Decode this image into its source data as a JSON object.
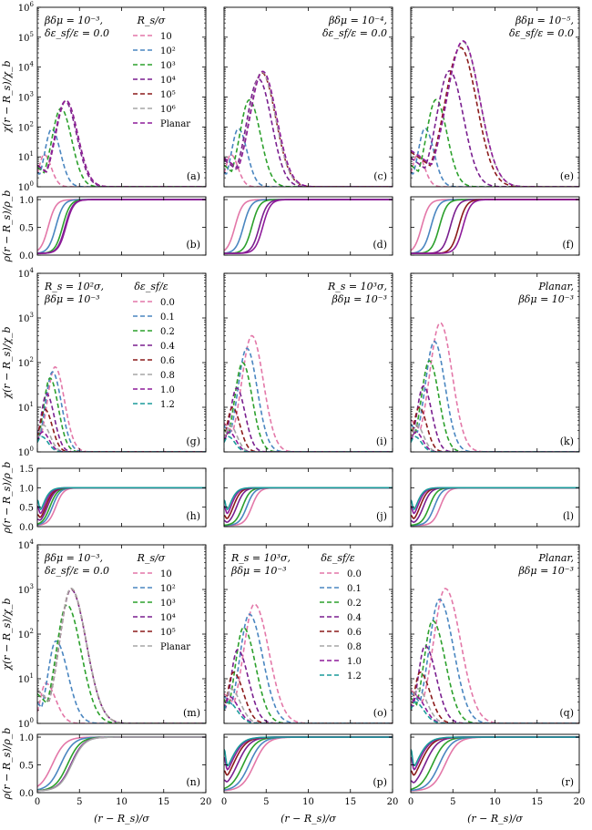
{
  "figure": {
    "x_label": "(r − R_s)/σ",
    "chi_label": "χ(r − R_s)/χ_b",
    "rho_label": "ρ(r − R_s)/ρ_b",
    "x_ticks": [
      "0",
      "5",
      "10",
      "15",
      "20"
    ]
  },
  "colors": {
    "pink": "#e377a8",
    "blue": "#4a86c0",
    "green": "#2ca02c",
    "purple": "#7a1f8f",
    "darkred": "#8b1a1a",
    "grey": "#a6a6a6",
    "magenta": "#8e1b9a",
    "teal": "#1a9a9a"
  },
  "chart_data": [
    {
      "id": "a",
      "type": "line",
      "scale": "log",
      "row": "chi",
      "ylim": [
        1,
        1000000
      ],
      "ylabels": [
        "10^0",
        "10^1",
        "10^2",
        "10^3",
        "10^4",
        "10^5",
        "10^6"
      ],
      "annotation": [
        "βδμ = 10⁻³,",
        "δε_sf/ε = 0.0"
      ],
      "legend_title": "R_s/σ",
      "series": [
        {
          "name": "10",
          "color": "pink",
          "peak": 12,
          "xp": 0.8
        },
        {
          "name": "10²",
          "color": "blue",
          "peak": 85,
          "xp": 1.7
        },
        {
          "name": "10³",
          "color": "green",
          "peak": 420,
          "xp": 2.8
        },
        {
          "name": "10⁴",
          "color": "purple",
          "peak": 720,
          "xp": 3.3
        },
        {
          "name": "10⁵",
          "color": "darkred",
          "peak": 760,
          "xp": 3.4
        },
        {
          "name": "10⁶",
          "color": "grey",
          "peak": 760,
          "xp": 3.4
        },
        {
          "name": "Planar",
          "color": "magenta",
          "peak": 770,
          "xp": 3.4
        }
      ]
    },
    {
      "id": "b",
      "type": "line",
      "scale": "linear",
      "row": "rho",
      "ylim": [
        0,
        1.05
      ],
      "ylabels": [
        "0.0",
        "0.5",
        "1.0"
      ],
      "series": [
        {
          "color": "pink",
          "mid": 1.3
        },
        {
          "color": "blue",
          "mid": 2.2
        },
        {
          "color": "green",
          "mid": 3.0
        },
        {
          "color": "purple",
          "mid": 3.3
        },
        {
          "color": "magenta",
          "mid": 3.4
        }
      ]
    },
    {
      "id": "c",
      "type": "line",
      "scale": "log",
      "row": "chi",
      "ylim": [
        1,
        1000000
      ],
      "annotation": [
        "βδμ = 10⁻⁴,",
        "δε_sf/ε = 0.0"
      ],
      "series": [
        {
          "name": "10",
          "color": "pink",
          "peak": 12,
          "xp": 0.8
        },
        {
          "name": "10²",
          "color": "blue",
          "peak": 88,
          "xp": 1.7
        },
        {
          "name": "10³",
          "color": "green",
          "peak": 800,
          "xp": 3.0
        },
        {
          "name": "10⁴",
          "color": "purple",
          "peak": 4000,
          "xp": 4.1
        },
        {
          "name": "10⁵",
          "color": "darkred",
          "peak": 6500,
          "xp": 4.5
        },
        {
          "name": "10⁶",
          "color": "grey",
          "peak": 7000,
          "xp": 4.5
        },
        {
          "name": "Planar",
          "color": "magenta",
          "peak": 7200,
          "xp": 4.6
        }
      ]
    },
    {
      "id": "d",
      "type": "line",
      "scale": "linear",
      "row": "rho",
      "ylim": [
        0,
        1.05
      ],
      "series": [
        {
          "color": "pink",
          "mid": 1.3
        },
        {
          "color": "blue",
          "mid": 2.3
        },
        {
          "color": "green",
          "mid": 3.3
        },
        {
          "color": "purple",
          "mid": 4.2
        },
        {
          "color": "magenta",
          "mid": 4.6
        }
      ]
    },
    {
      "id": "e",
      "type": "line",
      "scale": "log",
      "row": "chi",
      "ylim": [
        1,
        1000000
      ],
      "annotation": [
        "βδμ = 10⁻⁵,",
        "δε_sf/ε = 0.0"
      ],
      "series": [
        {
          "name": "10",
          "color": "pink",
          "peak": 12,
          "xp": 0.8
        },
        {
          "name": "10²",
          "color": "blue",
          "peak": 90,
          "xp": 1.7
        },
        {
          "name": "10³",
          "color": "green",
          "peak": 820,
          "xp": 3.0
        },
        {
          "name": "10⁴",
          "color": "purple",
          "peak": 7500,
          "xp": 4.6
        },
        {
          "name": "10⁵",
          "color": "darkred",
          "peak": 45000,
          "xp": 5.9
        },
        {
          "name": "10⁶",
          "color": "grey",
          "peak": 70000,
          "xp": 6.2
        },
        {
          "name": "Planar",
          "color": "magenta",
          "peak": 75000,
          "xp": 6.2
        }
      ]
    },
    {
      "id": "f",
      "type": "line",
      "scale": "linear",
      "row": "rho",
      "ylim": [
        0,
        1.05
      ],
      "series": [
        {
          "color": "pink",
          "mid": 1.3
        },
        {
          "color": "blue",
          "mid": 2.4
        },
        {
          "color": "green",
          "mid": 3.4
        },
        {
          "color": "purple",
          "mid": 4.7
        },
        {
          "color": "darkred",
          "mid": 5.7
        },
        {
          "color": "magenta",
          "mid": 6.2
        }
      ]
    },
    {
      "id": "g",
      "type": "line",
      "scale": "log",
      "row": "chi",
      "ylim": [
        1,
        10000
      ],
      "ylabels": [
        "10^0",
        "10^1",
        "10^2",
        "10^3",
        "10^4"
      ],
      "annotation": [
        "R_s = 10²σ,",
        "βδμ = 10⁻³"
      ],
      "legend_title": "δε_sf/ε",
      "series": [
        {
          "name": "0.0",
          "color": "pink",
          "peak": 80,
          "xp": 2.1
        },
        {
          "name": "0.1",
          "color": "blue",
          "peak": 62,
          "xp": 1.8
        },
        {
          "name": "0.2",
          "color": "green",
          "peak": 45,
          "xp": 1.5
        },
        {
          "name": "0.4",
          "color": "purple",
          "peak": 20,
          "xp": 1.1
        },
        {
          "name": "0.6",
          "color": "darkred",
          "peak": 9,
          "xp": 0.9
        },
        {
          "name": "0.8",
          "color": "grey",
          "peak": 4,
          "xp": 0.7
        },
        {
          "name": "1.0",
          "color": "magenta",
          "peak": 2.8,
          "xp": 0.6
        },
        {
          "name": "1.2",
          "color": "teal",
          "peak": 2.2,
          "xp": 0.5
        }
      ]
    },
    {
      "id": "h",
      "type": "line",
      "scale": "linear",
      "row": "rho",
      "ylim": [
        0,
        1.5
      ],
      "ylabels": [
        "0.0",
        "0.5",
        "1.0",
        "1.5"
      ],
      "series": [
        {
          "color": "pink",
          "mid": 2.2,
          "dip": 0
        },
        {
          "color": "blue",
          "mid": 1.8,
          "dip": 0
        },
        {
          "color": "green",
          "mid": 1.5,
          "dip": 0
        },
        {
          "color": "purple",
          "mid": 1.2,
          "dip": 0.1
        },
        {
          "color": "darkred",
          "mid": 1.0,
          "dip": 0.2
        },
        {
          "color": "magenta",
          "mid": 0.8,
          "dip": 0.4
        },
        {
          "color": "teal",
          "mid": 0.6,
          "dip": 0.5
        }
      ]
    },
    {
      "id": "i",
      "type": "line",
      "scale": "log",
      "row": "chi",
      "ylim": [
        1,
        10000
      ],
      "annotation": [
        "R_s = 10³σ,",
        "βδμ = 10⁻³"
      ],
      "series": [
        {
          "name": "0.0",
          "color": "pink",
          "peak": 400,
          "xp": 3.3
        },
        {
          "name": "0.1",
          "color": "blue",
          "peak": 210,
          "xp": 2.7
        },
        {
          "name": "0.2",
          "color": "green",
          "peak": 100,
          "xp": 2.2
        },
        {
          "name": "0.4",
          "color": "purple",
          "peak": 27,
          "xp": 1.5
        },
        {
          "name": "0.6",
          "color": "darkred",
          "peak": 10,
          "xp": 1.0
        },
        {
          "name": "0.8",
          "color": "grey",
          "peak": 4,
          "xp": 0.7
        },
        {
          "name": "1.0",
          "color": "magenta",
          "peak": 2.8,
          "xp": 0.6
        },
        {
          "name": "1.2",
          "color": "teal",
          "peak": 2.2,
          "xp": 0.5
        }
      ]
    },
    {
      "id": "j",
      "type": "line",
      "scale": "linear",
      "row": "rho",
      "ylim": [
        0,
        1.5
      ],
      "series": [
        {
          "color": "pink",
          "mid": 3.3,
          "dip": 0
        },
        {
          "color": "blue",
          "mid": 2.7,
          "dip": 0
        },
        {
          "color": "green",
          "mid": 2.2,
          "dip": 0
        },
        {
          "color": "purple",
          "mid": 1.5,
          "dip": 0.1
        },
        {
          "color": "darkred",
          "mid": 1.1,
          "dip": 0.2
        },
        {
          "color": "magenta",
          "mid": 0.8,
          "dip": 0.4
        },
        {
          "color": "teal",
          "mid": 0.6,
          "dip": 0.5
        }
      ]
    },
    {
      "id": "k",
      "type": "line",
      "scale": "log",
      "row": "chi",
      "ylim": [
        1,
        10000
      ],
      "annotation": [
        "Planar,",
        "βδμ = 10⁻³"
      ],
      "series": [
        {
          "name": "0.0",
          "color": "pink",
          "peak": 780,
          "xp": 3.5
        },
        {
          "name": "0.1",
          "color": "blue",
          "peak": 300,
          "xp": 2.8
        },
        {
          "name": "0.2",
          "color": "green",
          "peak": 110,
          "xp": 2.2
        },
        {
          "name": "0.4",
          "color": "purple",
          "peak": 30,
          "xp": 1.5
        },
        {
          "name": "0.6",
          "color": "darkred",
          "peak": 10,
          "xp": 1.0
        },
        {
          "name": "0.8",
          "color": "grey",
          "peak": 4,
          "xp": 0.7
        },
        {
          "name": "1.0",
          "color": "magenta",
          "peak": 2.8,
          "xp": 0.6
        },
        {
          "name": "1.2",
          "color": "teal",
          "peak": 2.2,
          "xp": 0.5
        }
      ]
    },
    {
      "id": "l",
      "type": "line",
      "scale": "linear",
      "row": "rho",
      "ylim": [
        0,
        1.5
      ],
      "series": [
        {
          "color": "pink",
          "mid": 3.5,
          "dip": 0
        },
        {
          "color": "blue",
          "mid": 2.8,
          "dip": 0
        },
        {
          "color": "green",
          "mid": 2.2,
          "dip": 0
        },
        {
          "color": "purple",
          "mid": 1.5,
          "dip": 0.1
        },
        {
          "color": "darkred",
          "mid": 1.1,
          "dip": 0.2
        },
        {
          "color": "magenta",
          "mid": 0.8,
          "dip": 0.4
        },
        {
          "color": "teal",
          "mid": 0.6,
          "dip": 0.5
        }
      ]
    },
    {
      "id": "m",
      "type": "line",
      "scale": "log",
      "row": "chi",
      "ylim": [
        1,
        10000
      ],
      "ylabels": [
        "10^0",
        "10^1",
        "10^2",
        "10^3",
        "10^4"
      ],
      "annotation": [
        "βδμ = 10⁻³,",
        "δε_sf/ε = 0.0"
      ],
      "legend_title": "R_s/σ",
      "series": [
        {
          "name": "10",
          "color": "pink",
          "peak": 8,
          "xp": 1.0,
          "wide": 1
        },
        {
          "name": "10²",
          "color": "blue",
          "peak": 70,
          "xp": 2.2,
          "wide": 1
        },
        {
          "name": "10³",
          "color": "green",
          "peak": 450,
          "xp": 3.5,
          "wide": 1
        },
        {
          "name": "10⁴",
          "color": "purple",
          "peak": 1000,
          "xp": 4.0,
          "wide": 1
        },
        {
          "name": "10⁵",
          "color": "darkred",
          "peak": 1050,
          "xp": 4.0,
          "wide": 1
        },
        {
          "name": "Planar",
          "color": "grey",
          "peak": 1060,
          "xp": 4.0,
          "wide": 1
        }
      ]
    },
    {
      "id": "n",
      "type": "line",
      "scale": "linear",
      "row": "rho",
      "ylim": [
        0,
        1.05
      ],
      "ylabels": [
        "0.0",
        "0.5",
        "1.0"
      ],
      "series": [
        {
          "color": "pink",
          "mid": 1.8,
          "wide": 1
        },
        {
          "color": "blue",
          "mid": 2.8,
          "wide": 1
        },
        {
          "color": "green",
          "mid": 3.6,
          "wide": 1
        },
        {
          "color": "purple",
          "mid": 4.0,
          "wide": 1
        },
        {
          "color": "grey",
          "mid": 4.1,
          "wide": 1
        }
      ]
    },
    {
      "id": "o",
      "type": "line",
      "scale": "log",
      "row": "chi",
      "ylim": [
        1,
        10000
      ],
      "annotation": [
        "R_s = 10³σ,",
        "βδμ = 10⁻³"
      ],
      "legend_title": "δε_sf/ε",
      "series": [
        {
          "name": "0.0",
          "color": "pink",
          "peak": 470,
          "xp": 3.6,
          "wide": 1
        },
        {
          "name": "0.1",
          "color": "blue",
          "peak": 280,
          "xp": 3.0,
          "wide": 1
        },
        {
          "name": "0.2",
          "color": "green",
          "peak": 140,
          "xp": 2.3,
          "wide": 1
        },
        {
          "name": "0.4",
          "color": "purple",
          "peak": 45,
          "xp": 1.6,
          "wide": 1
        },
        {
          "name": "0.6",
          "color": "darkred",
          "peak": 14,
          "xp": 1.1,
          "wide": 1
        },
        {
          "name": "0.8",
          "color": "grey",
          "peak": 6,
          "xp": 0.8,
          "wide": 1
        },
        {
          "name": "1.0",
          "color": "magenta",
          "peak": 4,
          "xp": 0.6,
          "wide": 1
        },
        {
          "name": "1.2",
          "color": "teal",
          "peak": 3,
          "xp": 0.5,
          "wide": 1
        }
      ]
    },
    {
      "id": "p",
      "type": "line",
      "scale": "linear",
      "row": "rho",
      "ylim": [
        0,
        1.05
      ],
      "series": [
        {
          "color": "pink",
          "mid": 3.6,
          "dip": 0,
          "wide": 1
        },
        {
          "color": "blue",
          "mid": 3.0,
          "dip": 0,
          "wide": 1
        },
        {
          "color": "green",
          "mid": 2.3,
          "dip": 0,
          "wide": 1
        },
        {
          "color": "purple",
          "mid": 1.6,
          "dip": 0.1,
          "wide": 1
        },
        {
          "color": "darkred",
          "mid": 1.1,
          "dip": 0.2,
          "wide": 1
        },
        {
          "color": "magenta",
          "mid": 0.8,
          "dip": 0.4,
          "wide": 1
        },
        {
          "color": "teal",
          "mid": 0.6,
          "dip": 0.5,
          "wide": 1
        }
      ]
    },
    {
      "id": "q",
      "type": "line",
      "scale": "log",
      "row": "chi",
      "ylim": [
        1,
        10000
      ],
      "annotation": [
        "Planar,",
        "βδμ = 10⁻³"
      ],
      "series": [
        {
          "name": "0.0",
          "color": "pink",
          "peak": 1050,
          "xp": 4.1,
          "wide": 1
        },
        {
          "name": "0.1",
          "color": "blue",
          "peak": 600,
          "xp": 3.4,
          "wide": 1
        },
        {
          "name": "0.2",
          "color": "green",
          "peak": 200,
          "xp": 2.6,
          "wide": 1
        },
        {
          "name": "0.4",
          "color": "purple",
          "peak": 55,
          "xp": 1.7,
          "wide": 1
        },
        {
          "name": "0.6",
          "color": "darkred",
          "peak": 14,
          "xp": 1.1,
          "wide": 1
        },
        {
          "name": "0.8",
          "color": "grey",
          "peak": 6,
          "xp": 0.8,
          "wide": 1
        },
        {
          "name": "1.0",
          "color": "magenta",
          "peak": 4,
          "xp": 0.6,
          "wide": 1
        },
        {
          "name": "1.2",
          "color": "teal",
          "peak": 3,
          "xp": 0.5,
          "wide": 1
        }
      ]
    },
    {
      "id": "r",
      "type": "line",
      "scale": "linear",
      "row": "rho",
      "ylim": [
        0,
        1.05
      ],
      "series": [
        {
          "color": "pink",
          "mid": 4.1,
          "dip": 0,
          "wide": 1
        },
        {
          "color": "blue",
          "mid": 3.4,
          "dip": 0,
          "wide": 1
        },
        {
          "color": "green",
          "mid": 2.6,
          "dip": 0,
          "wide": 1
        },
        {
          "color": "purple",
          "mid": 1.7,
          "dip": 0.1,
          "wide": 1
        },
        {
          "color": "darkred",
          "mid": 1.1,
          "dip": 0.2,
          "wide": 1
        },
        {
          "color": "magenta",
          "mid": 0.8,
          "dip": 0.4,
          "wide": 1
        },
        {
          "color": "teal",
          "mid": 0.6,
          "dip": 0.5,
          "wide": 1
        }
      ]
    }
  ]
}
